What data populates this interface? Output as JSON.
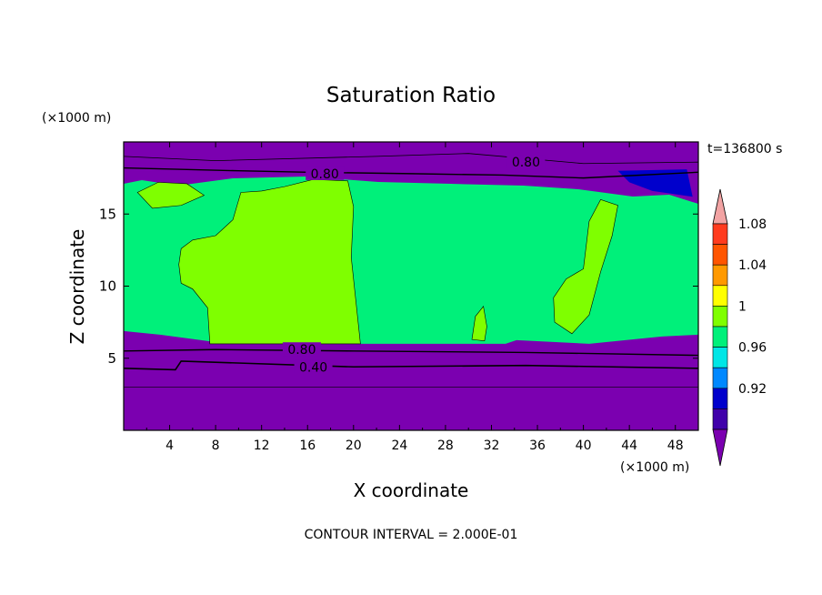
{
  "chart_data": {
    "type": "contour",
    "title": "Saturation Ratio",
    "xlabel": "X coordinate",
    "ylabel": "Z coordinate",
    "x_unit": "(×1000 m)",
    "y_unit": "(×1000 m)",
    "time_label": "t=136800 s",
    "footer": "CONTOUR INTERVAL = 2.000E-01",
    "xlim": [
      0,
      50
    ],
    "ylim": [
      0,
      20
    ],
    "x_ticks": [
      4,
      8,
      12,
      16,
      20,
      24,
      28,
      32,
      36,
      40,
      44,
      48
    ],
    "y_ticks": [
      5,
      10,
      15
    ],
    "contour_labels": [
      {
        "text": "0.80",
        "x": 17.5,
        "z": 17.8
      },
      {
        "text": "0.80",
        "x": 35.0,
        "z": 18.6
      },
      {
        "text": "0.80",
        "x": 15.5,
        "z": 5.6
      },
      {
        "text": "0.40",
        "x": 16.5,
        "z": 4.4
      }
    ],
    "colorbar": {
      "labels": [
        "1.08",
        "1.04",
        "1",
        "0.96",
        "0.92"
      ],
      "label_values": [
        1.08,
        1.04,
        1.0,
        0.96,
        0.92
      ],
      "levels": [
        {
          "min": 1.1,
          "color": "#f2a3a3"
        },
        {
          "min": 1.08,
          "color": "#ff3b1e"
        },
        {
          "min": 1.06,
          "color": "#ff5500"
        },
        {
          "min": 1.04,
          "color": "#ff9900"
        },
        {
          "min": 1.02,
          "color": "#ffff00"
        },
        {
          "min": 1.0,
          "color": "#7fff00"
        },
        {
          "min": 0.98,
          "color": "#00f07a"
        },
        {
          "min": 0.96,
          "color": "#00e6e6"
        },
        {
          "min": 0.94,
          "color": "#0088ff"
        },
        {
          "min": 0.92,
          "color": "#0000cc"
        },
        {
          "min": 0.9,
          "color": "#4000aa"
        },
        {
          "max": 0.9,
          "color": "#7b00b0"
        }
      ]
    },
    "regions": {
      "dry_top_z": 17.6,
      "dry_bottom_z": 6.0,
      "plateau_color": "#7fff00",
      "mid_color": "#00f07a",
      "dry_color": "#7b00b0"
    }
  }
}
